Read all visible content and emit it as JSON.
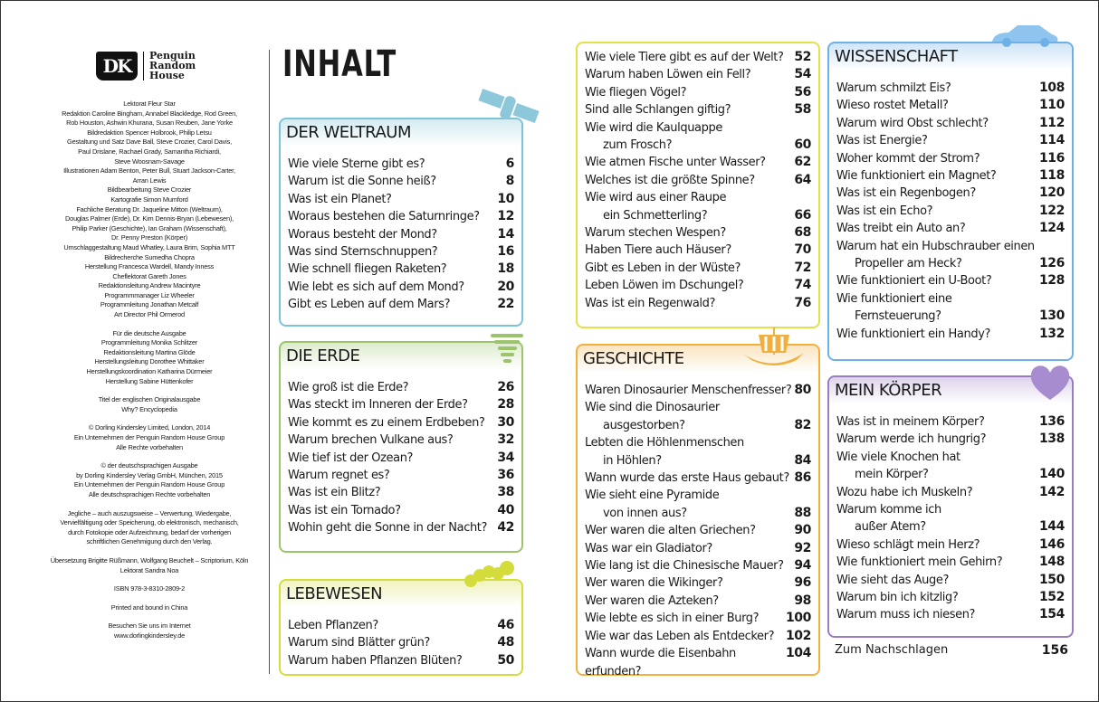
{
  "publisher": {
    "logo_text": "DK",
    "name_lines": [
      "Penguin",
      "Random",
      "House"
    ]
  },
  "credits": [
    "Lektorat Fleur Star",
    "Redaktion Caroline Bingham, Annabel Blackledge, Rod Green,",
    "Rob Houston, Ashwin Khurana, Susan Reuben, Jane Yorke",
    "Bildredaktion Spencer Holbrook, Philip Letsu",
    "Gestaltung und Satz Dave Ball, Steve Crozier, Carol Davis,",
    "Paul Drislane, Rachael Grady, Samantha Richiardi,",
    "Steve Woosnam-Savage",
    "Illustrationen Adam Benton, Peter Bull, Stuart Jackson-Carter,",
    "Arran Lewis",
    "Bildbearbeitung Steve Crozier",
    "Kartografie Simon Mumford",
    "Fachliche Beratung Dr. Jaqueline Mitton (Weltraum),",
    "Douglas Palmer (Erde), Dr. Kim Dennis-Bryan (Lebewesen),",
    "Philip Parker (Geschichte), Ian Graham (Wissenschaft),",
    "Dr. Penny Preston (Körper)",
    "Umschlaggestaltung Maud Whatley, Laura Brim, Sophia MTT",
    "Bildrecherche Sumedha Chopra",
    "Herstellung Francesca Wardell, Mandy Inness",
    "Cheflektorat Gareth Jones",
    "Redaktionsleitung Andrew Macintyre",
    "Programmmanager Liz Wheeler",
    "Programmleitung Jonathan Metcalf",
    "Art Director Phil Ormerod",
    "",
    "Für die deutsche Ausgabe",
    "Programmleitung Monika Schlitzer",
    "Redaktionsleitung Martina Glöde",
    "Herstellungsleitung Dorothee Whittaker",
    "Herstellungskoordination Katharina Dürmeier",
    "Herstellung Sabine Hüttenkofer",
    "",
    "Titel der englischen Originalausgabe",
    "Why? Encyclopedia",
    "",
    "© Dorling Kindersley Limited, London, 2014",
    "Ein Unternehmen der Penguin Random House Group",
    "Alle Rechte vorbehalten",
    "",
    "© der deutschsprachigen Ausgabe",
    "by Dorling Kindersley Verlag GmbH, München, 2015",
    "Ein Unternehmen der Penguin Random House Group",
    "Alle deutschsprachigen Rechte vorbehalten",
    "",
    "Jegliche – auch auszugsweise – Verwertung, Wiedergabe,",
    "Vervielfältigung oder Speicherung, ob elektronisch, mechanisch,",
    "durch Fotokopie oder Aufzeichnung, bedarf der vorherigen",
    "schriftlichen Genehmigung durch den Verlag.",
    "",
    "Übersetzung Brigitte Rüßmann, Wolfgang Beuchelt – Scriptorium, Köln",
    "Lektorat Sandra Noa",
    "",
    "ISBN 978-3-8310-2809-2",
    "",
    "Printed and bound in China",
    "",
    "Besuchen Sie uns im Internet",
    "www.dorlingkindersley.de"
  ],
  "title": "INHALT",
  "sections": [
    {
      "id": "weltraum",
      "title": "DER WELTRAUM",
      "color": "#7cc3d8",
      "icon": "satellite-icon",
      "items": [
        {
          "q": "Wie viele Sterne gibt es?",
          "p": "6"
        },
        {
          "q": "Warum ist die Sonne heiß?",
          "p": "8"
        },
        {
          "q": "Was ist ein Planet?",
          "p": "10"
        },
        {
          "q": "Woraus bestehen die Saturnringe?",
          "p": "12"
        },
        {
          "q": "Woraus besteht der Mond?",
          "p": "14"
        },
        {
          "q": "Was sind Sternschnuppen?",
          "p": "16"
        },
        {
          "q": "Wie schnell fliegen Raketen?",
          "p": "18"
        },
        {
          "q": "Wie lebt es sich auf dem Mond?",
          "p": "20"
        },
        {
          "q": "Gibt es Leben auf dem Mars?",
          "p": "22"
        }
      ]
    },
    {
      "id": "erde",
      "title": "DIE ERDE",
      "color": "#9cc46c",
      "icon": "tornado-icon",
      "items": [
        {
          "q": "Wie groß ist die Erde?",
          "p": "26"
        },
        {
          "q": "Was steckt im Inneren der Erde?",
          "p": "28"
        },
        {
          "q": "Wie kommt es zu einem Erdbeben?",
          "p": "30"
        },
        {
          "q": "Warum brechen Vulkane aus?",
          "p": "32"
        },
        {
          "q": "Wie tief ist der Ozean?",
          "p": "34"
        },
        {
          "q": "Warum regnet es?",
          "p": "36"
        },
        {
          "q": "Was ist ein Blitz?",
          "p": "38"
        },
        {
          "q": "Was ist ein Tornado?",
          "p": "40"
        },
        {
          "q": "Wohin geht die Sonne in der Nacht?",
          "p": "42"
        }
      ]
    },
    {
      "id": "lebewesen",
      "title": "LEBEWESEN",
      "color": "#d4dc3c",
      "icon": "caterpillar-icon",
      "items": [
        {
          "q": "Leben Pflanzen?",
          "p": "46"
        },
        {
          "q": "Warum sind Blätter grün?",
          "p": "48"
        },
        {
          "q": "Warum haben Pflanzen Blüten?",
          "p": "50"
        }
      ]
    },
    {
      "id": "lebewesen2",
      "title": "",
      "color": "#e3e04a",
      "icon": "",
      "items": [
        {
          "q": "Wie viele Tiere gibt es auf der Welt?",
          "p": "52"
        },
        {
          "q": "Warum haben Löwen ein Fell?",
          "p": "54"
        },
        {
          "q": "Wie fliegen Vögel?",
          "p": "56"
        },
        {
          "q": "Sind alle Schlangen giftig?",
          "p": "58"
        },
        {
          "q": "Wie wird die Kaulquappe",
          "q2": "zum Frosch?",
          "p": "60"
        },
        {
          "q": "Wie atmen Fische unter Wasser?",
          "p": "62"
        },
        {
          "q": "Welches ist die größte Spinne?",
          "p": "64"
        },
        {
          "q": "Wie wird aus einer Raupe",
          "q2": "ein Schmetterling?",
          "p": "66"
        },
        {
          "q": "Warum stechen Wespen?",
          "p": "68"
        },
        {
          "q": "Haben Tiere auch Häuser?",
          "p": "70"
        },
        {
          "q": "Gibt es Leben in der Wüste?",
          "p": "72"
        },
        {
          "q": "Leben Löwen im Dschungel?",
          "p": "74"
        },
        {
          "q": "Was ist ein Regenwald?",
          "p": "76"
        }
      ]
    },
    {
      "id": "geschichte",
      "title": "GESCHICHTE",
      "color": "#f2b040",
      "icon": "viking-ship-icon",
      "items": [
        {
          "q": "Waren Dinosaurier Menschenfresser?",
          "p": "80"
        },
        {
          "q": "Wie sind die Dinosaurier",
          "q2": "ausgestorben?",
          "p": "82"
        },
        {
          "q": "Lebten die Höhlenmenschen",
          "q2": "in Höhlen?",
          "p": "84"
        },
        {
          "q": "Wann wurde das erste Haus gebaut?",
          "p": "86"
        },
        {
          "q": "Wie sieht eine Pyramide",
          "q2": "von innen aus?",
          "p": "88"
        },
        {
          "q": "Wer waren die alten Griechen?",
          "p": "90"
        },
        {
          "q": "Was war ein Gladiator?",
          "p": "92"
        },
        {
          "q": "Wie lang ist die Chinesische Mauer?",
          "p": "94"
        },
        {
          "q": "Wer waren die Wikinger?",
          "p": "96"
        },
        {
          "q": "Wer waren die Azteken?",
          "p": "98"
        },
        {
          "q": "Wie lebte es sich in einer Burg?",
          "p": "100"
        },
        {
          "q": "Wie war das Leben als Entdecker?",
          "p": "102"
        },
        {
          "q": "Wann wurde die Eisenbahn erfunden?",
          "p": "104"
        }
      ]
    },
    {
      "id": "wissenschaft",
      "title": "WISSENSCHAFT",
      "color": "#6eb0e8",
      "icon": "car-icon",
      "items": [
        {
          "q": "Warum schmilzt Eis?",
          "p": "108"
        },
        {
          "q": "Wieso rostet Metall?",
          "p": "110"
        },
        {
          "q": "Warum wird Obst schlecht?",
          "p": "112"
        },
        {
          "q": "Was ist Energie?",
          "p": "114"
        },
        {
          "q": "Woher kommt der Strom?",
          "p": "116"
        },
        {
          "q": "Wie funktioniert ein Magnet?",
          "p": "118"
        },
        {
          "q": "Was ist ein Regenbogen?",
          "p": "120"
        },
        {
          "q": "Was ist ein Echo?",
          "p": "122"
        },
        {
          "q": "Was treibt ein Auto an?",
          "p": "124"
        },
        {
          "q": "Warum hat ein Hubschrauber einen",
          "q2": "Propeller am Heck?",
          "p": "126"
        },
        {
          "q": "Wie funktioniert ein U-Boot?",
          "p": "128"
        },
        {
          "q": "Wie funktioniert eine",
          "q2": "Fernsteuerung?",
          "p": "130"
        },
        {
          "q": "Wie funktioniert ein Handy?",
          "p": "132"
        }
      ]
    },
    {
      "id": "koerper",
      "title": "MEIN KÖRPER",
      "color": "#9a7cc4",
      "icon": "heart-icon",
      "items": [
        {
          "q": "Was ist in meinem Körper?",
          "p": "136"
        },
        {
          "q": "Warum werde ich hungrig?",
          "p": "138"
        },
        {
          "q": "Wie viele Knochen hat",
          "q2": "mein Körper?",
          "p": "140"
        },
        {
          "q": "Wozu habe ich Muskeln?",
          "p": "142"
        },
        {
          "q": "Warum komme ich",
          "q2": "außer Atem?",
          "p": "144"
        },
        {
          "q": "Wieso schlägt mein Herz?",
          "p": "146"
        },
        {
          "q": "Wie funktioniert mein Gehirn?",
          "p": "148"
        },
        {
          "q": "Wie sieht das Auge?",
          "p": "150"
        },
        {
          "q": "Warum bin ich kitzlig?",
          "p": "152"
        },
        {
          "q": "Warum muss ich niesen?",
          "p": "154"
        }
      ]
    }
  ],
  "appendix": {
    "label": "Zum Nachschlagen",
    "p": "156"
  }
}
